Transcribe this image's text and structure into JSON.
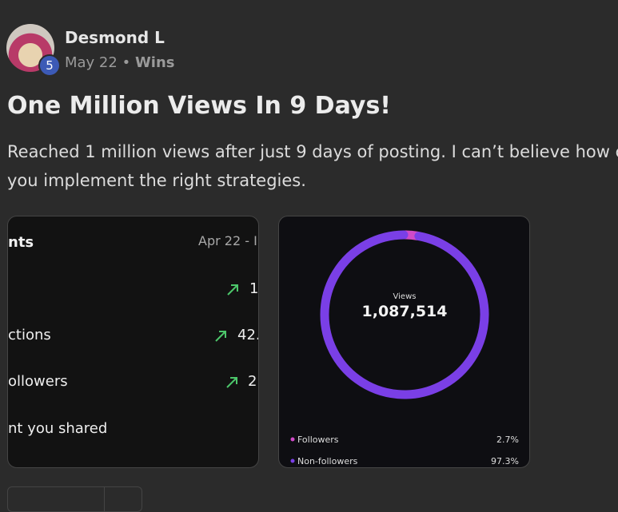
{
  "post": {
    "author": "Desmond L",
    "level": "5",
    "date": "May 22",
    "separator": "•",
    "category": "Wins",
    "title": "One Million Views In 9 Days!",
    "body_lines": [
      "Reached 1 million views after just 9 days of posting. I can’t believe how c",
      "you implement the right strategies."
    ]
  },
  "insights_image": {
    "heading": "nts",
    "date_range": "Apr 22 - I",
    "rows": [
      {
        "label": "",
        "value": "1."
      },
      {
        "label": "ctions",
        "value": "42."
      },
      {
        "label": "ollowers",
        "value": "2."
      },
      {
        "label": "nt you shared",
        "value": ""
      }
    ]
  },
  "views_image": {
    "center_label": "Views",
    "total": "1,087,514",
    "segments": [
      {
        "name": "Followers",
        "color": "#d04ac8",
        "value": 2.7,
        "value_label": "2.7%"
      },
      {
        "name": "Non-followers",
        "color": "#7a3fe6",
        "value": 97.3,
        "value_label": "97.3%"
      }
    ]
  }
}
